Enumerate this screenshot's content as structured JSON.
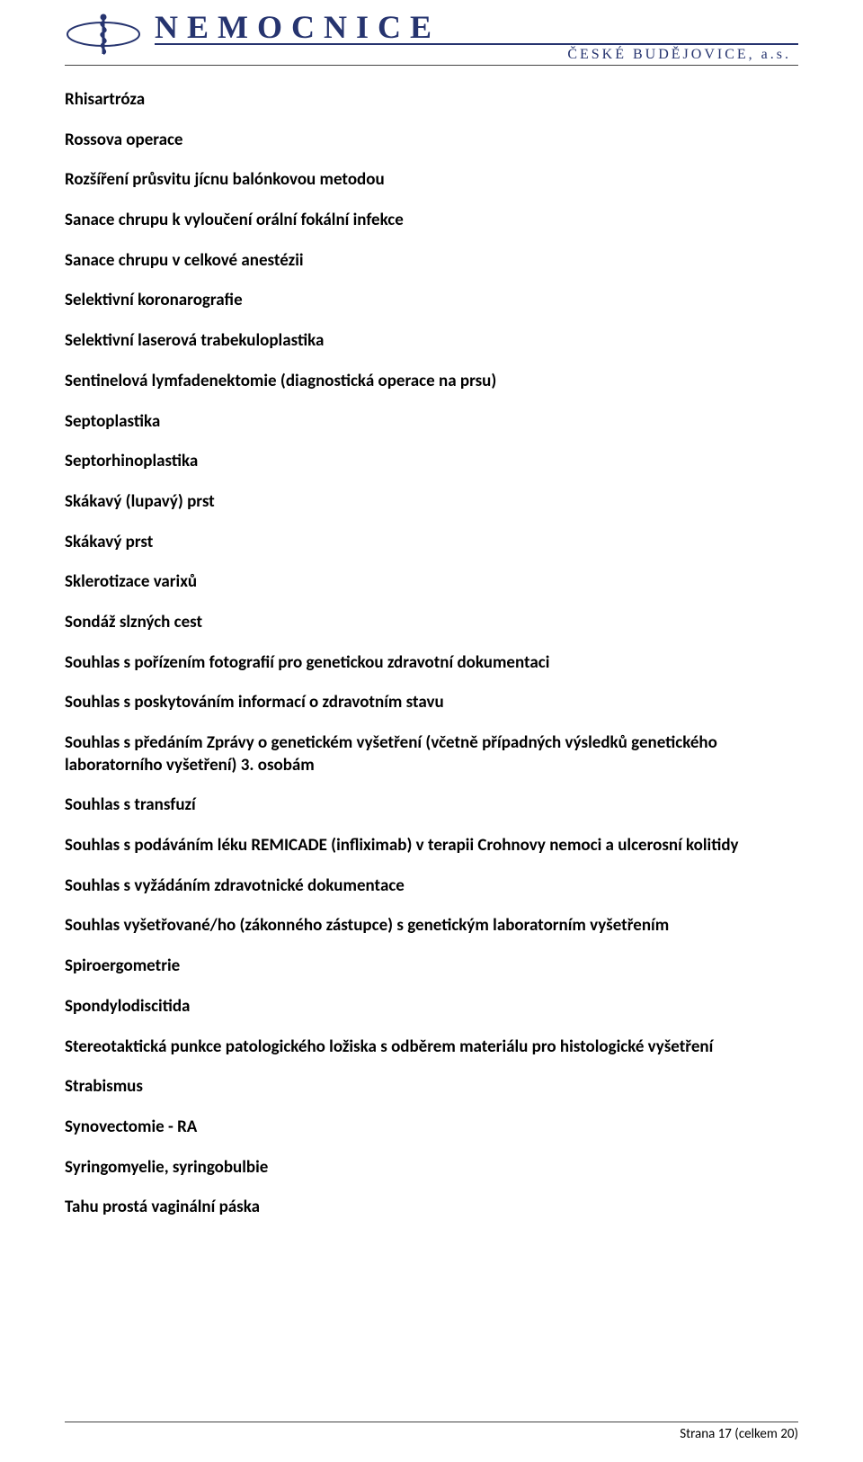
{
  "header": {
    "brand": "NEMOCNICE",
    "sub": "ČESKÉ BUDĚJOVICE, a.s.",
    "brand_color": "#26346f"
  },
  "items": [
    "Rhisartróza",
    "Rossova operace",
    "Rozšíření průsvitu jícnu balónkovou metodou",
    "Sanace chrupu k vyloučení orální fokální infekce",
    "Sanace chrupu v celkové anestézii",
    "Selektivní koronarografie",
    "Selektivní laserová trabekuloplastika",
    "Sentinelová lymfadenektomie (diagnostická operace na prsu)",
    "Septoplastika",
    "Septorhinoplastika",
    "Skákavý (lupavý) prst",
    "Skákavý prst",
    "Sklerotizace varixů",
    "Sondáž slzných cest",
    "Souhlas s pořízením fotografií pro genetickou zdravotní dokumentaci",
    "Souhlas s poskytováním informací o zdravotním stavu",
    "Souhlas s předáním Zprávy o genetickém vyšetření (včetně případných výsledků genetického laboratorního vyšetření) 3. osobám",
    "Souhlas s transfuzí",
    "Souhlas s podáváním léku REMICADE (infliximab) v terapii Crohnovy nemoci a ulcerosní kolitidy",
    "Souhlas s vyžádáním zdravotnické dokumentace",
    "Souhlas vyšetřované/ho (zákonného zástupce) s genetickým laboratorním vyšetřením",
    "Spiroergometrie",
    "Spondylodiscitida",
    "Stereotaktická punkce patologického ložiska s odběrem materiálu pro histologické vyšetření",
    "Strabismus",
    "Synovectomie - RA",
    "Syringomyelie, syringobulbie",
    "Tahu prostá vaginální páska"
  ],
  "footer": {
    "text": "Strana 17 (celkem 20)"
  }
}
